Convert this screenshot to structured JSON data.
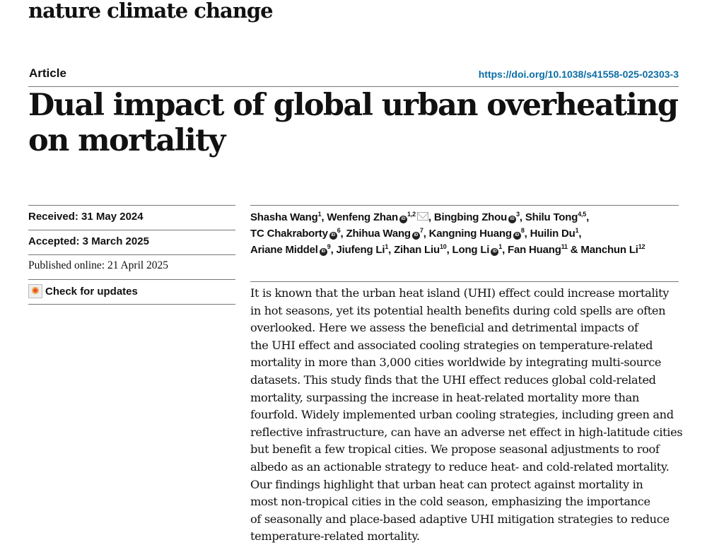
{
  "journal": "nature climate change",
  "article_type": "Article",
  "doi": "https://doi.org/10.1038/s41558-025-02303-3",
  "title": "Dual impact of global urban overheating on mortality",
  "dates": {
    "received": "Received: 31 May 2024",
    "accepted": "Accepted: 3 March 2025",
    "published": "Published online: 21 April 2025"
  },
  "check_updates": "Check for updates",
  "authors": [
    {
      "name": "Shasha Wang",
      "sup": "1",
      "orcid": false,
      "email": false,
      "sep": ", "
    },
    {
      "name": "Wenfeng Zhan",
      "sup": "1,2",
      "orcid": true,
      "email": true,
      "sep": ", "
    },
    {
      "name": "Bingbing Zhou",
      "sup": "3",
      "orcid": true,
      "email": false,
      "sep": ", "
    },
    {
      "name": "Shilu Tong",
      "sup": "4,5",
      "orcid": false,
      "email": false,
      "sep": ",",
      "br": true
    },
    {
      "name": "TC Chakraborty",
      "sup": "6",
      "orcid": true,
      "email": false,
      "sep": ", "
    },
    {
      "name": "Zhihua Wang",
      "sup": "7",
      "orcid": true,
      "email": false,
      "sep": ", "
    },
    {
      "name": "Kangning Huang",
      "sup": "8",
      "orcid": true,
      "email": false,
      "sep": ", "
    },
    {
      "name": "Huilin Du",
      "sup": "1",
      "orcid": false,
      "email": false,
      "sep": ",",
      "br": true
    },
    {
      "name": "Ariane Middel",
      "sup": "9",
      "orcid": true,
      "email": false,
      "sep": ", "
    },
    {
      "name": "Jiufeng Li",
      "sup": "1",
      "orcid": false,
      "email": false,
      "sep": ", "
    },
    {
      "name": "Zihan Liu",
      "sup": "10",
      "orcid": false,
      "email": false,
      "sep": ", "
    },
    {
      "name": "Long Li",
      "sup": "1",
      "orcid": true,
      "email": false,
      "sep": ", "
    },
    {
      "name": "Fan Huang",
      "sup": "11",
      "orcid": false,
      "email": false,
      "sep": " & "
    },
    {
      "name": "Manchun Li",
      "sup": "12",
      "orcid": false,
      "email": false,
      "sep": ""
    }
  ],
  "abstract_lines": [
    "It is known that the urban heat island (UHI) effect could increase mortality",
    "in hot seasons, yet its potential health benefits during cold spells are often",
    "overlooked. Here we assess the beneficial and detrimental impacts of",
    "the UHI effect and associated cooling strategies on temperature-related",
    "mortality in more than 3,000 cities worldwide by integrating multi-source",
    "datasets. This study finds that the UHI effect reduces global cold-related",
    "mortality, surpassing the increase in heat-related mortality more than",
    "fourfold. Widely implemented urban cooling strategies, including green and",
    "reflective infrastructure, can have an adverse net effect in high-latitude cities",
    "but benefit a few tropical cities. We propose seasonal adjustments to roof",
    "albedo as an actionable strategy to reduce heat- and cold-related mortality.",
    "Our findings highlight that urban heat can protect against mortality in",
    "most non-tropical cities in the cold season, emphasizing the importance",
    "of seasonally and place-based adaptive UHI mitigation strategies to reduce",
    "temperature-related mortality."
  ],
  "colors": {
    "doi_link": "#0b6ea6",
    "rule": "#777777"
  }
}
